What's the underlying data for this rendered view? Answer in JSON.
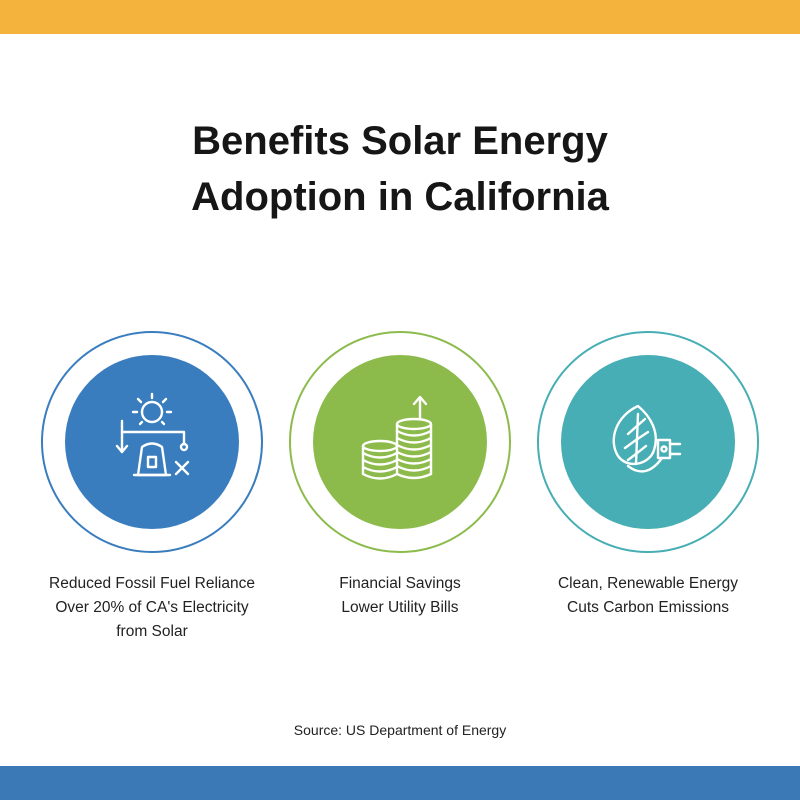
{
  "title": {
    "line1": "Benefits Solar Energy",
    "line2": "Adoption in California"
  },
  "benefits": [
    {
      "icon": "solar-tower-icon",
      "lines": [
        "Reduced Fossil Fuel Reliance",
        "Over 20% of CA's Electricity",
        "from Solar"
      ],
      "ring_color": "#3A7DBE",
      "disc_color": "#3A7DBE"
    },
    {
      "icon": "coin-stack-icon",
      "lines": [
        "Financial Savings",
        "Lower Utility Bills"
      ],
      "ring_color": "#8CBB4C",
      "disc_color": "#8CBB4C"
    },
    {
      "icon": "leaf-plug-icon",
      "lines": [
        "Clean, Renewable Energy",
        "Cuts Carbon Emissions"
      ],
      "ring_color": "#46AEB4",
      "disc_color": "#46AEB4"
    }
  ],
  "source": "Source: US Department of Energy",
  "colors": {
    "top_bar": "#F4B33C",
    "bottom_bar": "#3A78B6",
    "title": "#161616"
  }
}
